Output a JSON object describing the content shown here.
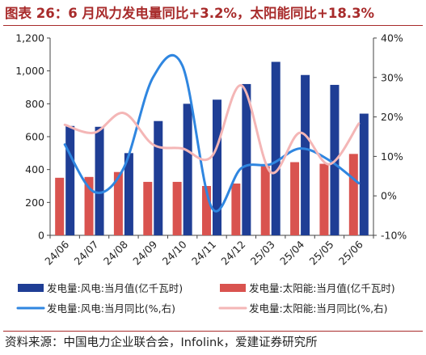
{
  "title": "图表 26：6 月风力发电量同比+3.2%，太阳能同比+18.3%",
  "source": "资料来源：中国电力企业联合会，Infolink，爱建证券研究所",
  "colors": {
    "title": "#a82b2b",
    "wind_bar": "#1f3e95",
    "solar_bar": "#d9534f",
    "wind_line": "#2f86e0",
    "solar_line": "#f4b6b6"
  },
  "chart_data": {
    "type": "bar",
    "categories": [
      "24/06",
      "24/07",
      "24/08",
      "24/09",
      "24/10",
      "24/11",
      "24/12",
      "25/03",
      "25/04",
      "25/05",
      "25/06"
    ],
    "series": [
      {
        "name": "发电量:风电:当月值(亿千瓦时)",
        "kind": "bar",
        "axis": "left",
        "values": [
          665,
          660,
          500,
          695,
          800,
          825,
          920,
          1055,
          975,
          915,
          740
        ]
      },
      {
        "name": "发电量:太阳能:当月值(亿千瓦时)",
        "kind": "bar",
        "axis": "left",
        "values": [
          350,
          355,
          385,
          325,
          325,
          300,
          315,
          420,
          445,
          435,
          495
        ]
      },
      {
        "name": "发电量:风电:当月同比(%,右)",
        "kind": "line",
        "axis": "right",
        "values": [
          13,
          1,
          7,
          30,
          33,
          -3,
          7,
          8,
          12,
          9,
          3.2
        ]
      },
      {
        "name": "发电量:太阳能:当月同比(%,右)",
        "kind": "line",
        "axis": "right",
        "values": [
          18,
          16,
          21,
          13,
          12,
          10,
          28,
          6,
          16,
          8,
          18.3
        ]
      }
    ],
    "y_left": {
      "min": 0,
      "max": 1200,
      "step": 200,
      "ticks": [
        "0",
        "200",
        "400",
        "600",
        "800",
        "1,000",
        "1,200"
      ]
    },
    "y_right": {
      "min": -10,
      "max": 40,
      "step": 10,
      "ticks": [
        "-10%",
        "0%",
        "10%",
        "20%",
        "30%",
        "40%"
      ]
    },
    "grid": false,
    "legend_position": "bottom"
  }
}
